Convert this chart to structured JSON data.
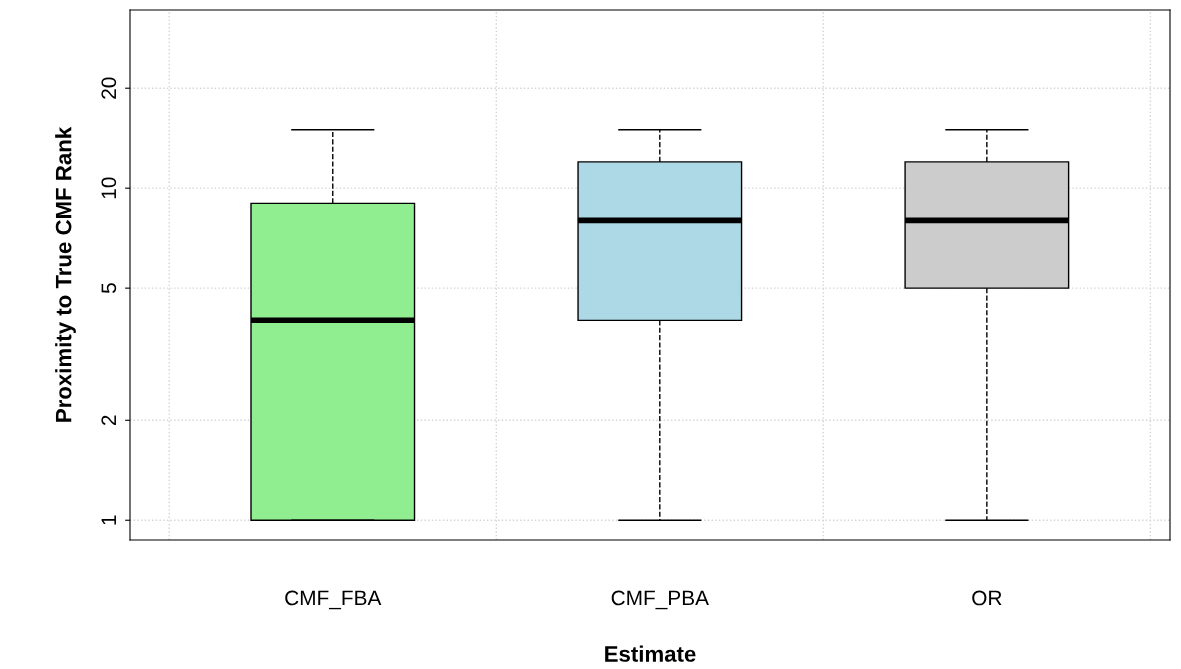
{
  "chart_data": {
    "type": "box",
    "xlabel": "Estimate",
    "ylabel": "Proximity to True CMF Rank",
    "categories": [
      "CMF_FBA",
      "CMF_PBA",
      "OR"
    ],
    "colors": [
      "#90ee90",
      "#add8e6",
      "#cccccc"
    ],
    "boxes": [
      {
        "low": 1,
        "q1": 1,
        "median": 4,
        "q3": 9,
        "high": 15
      },
      {
        "low": 1,
        "q1": 4,
        "median": 8,
        "q3": 12,
        "high": 15
      },
      {
        "low": 1,
        "q1": 5,
        "median": 8,
        "q3": 12,
        "high": 15
      }
    ],
    "log": "y",
    "ylim": [
      0.872,
      34.4
    ],
    "yticks": [
      1,
      2,
      5,
      10,
      20
    ],
    "grid": true
  }
}
